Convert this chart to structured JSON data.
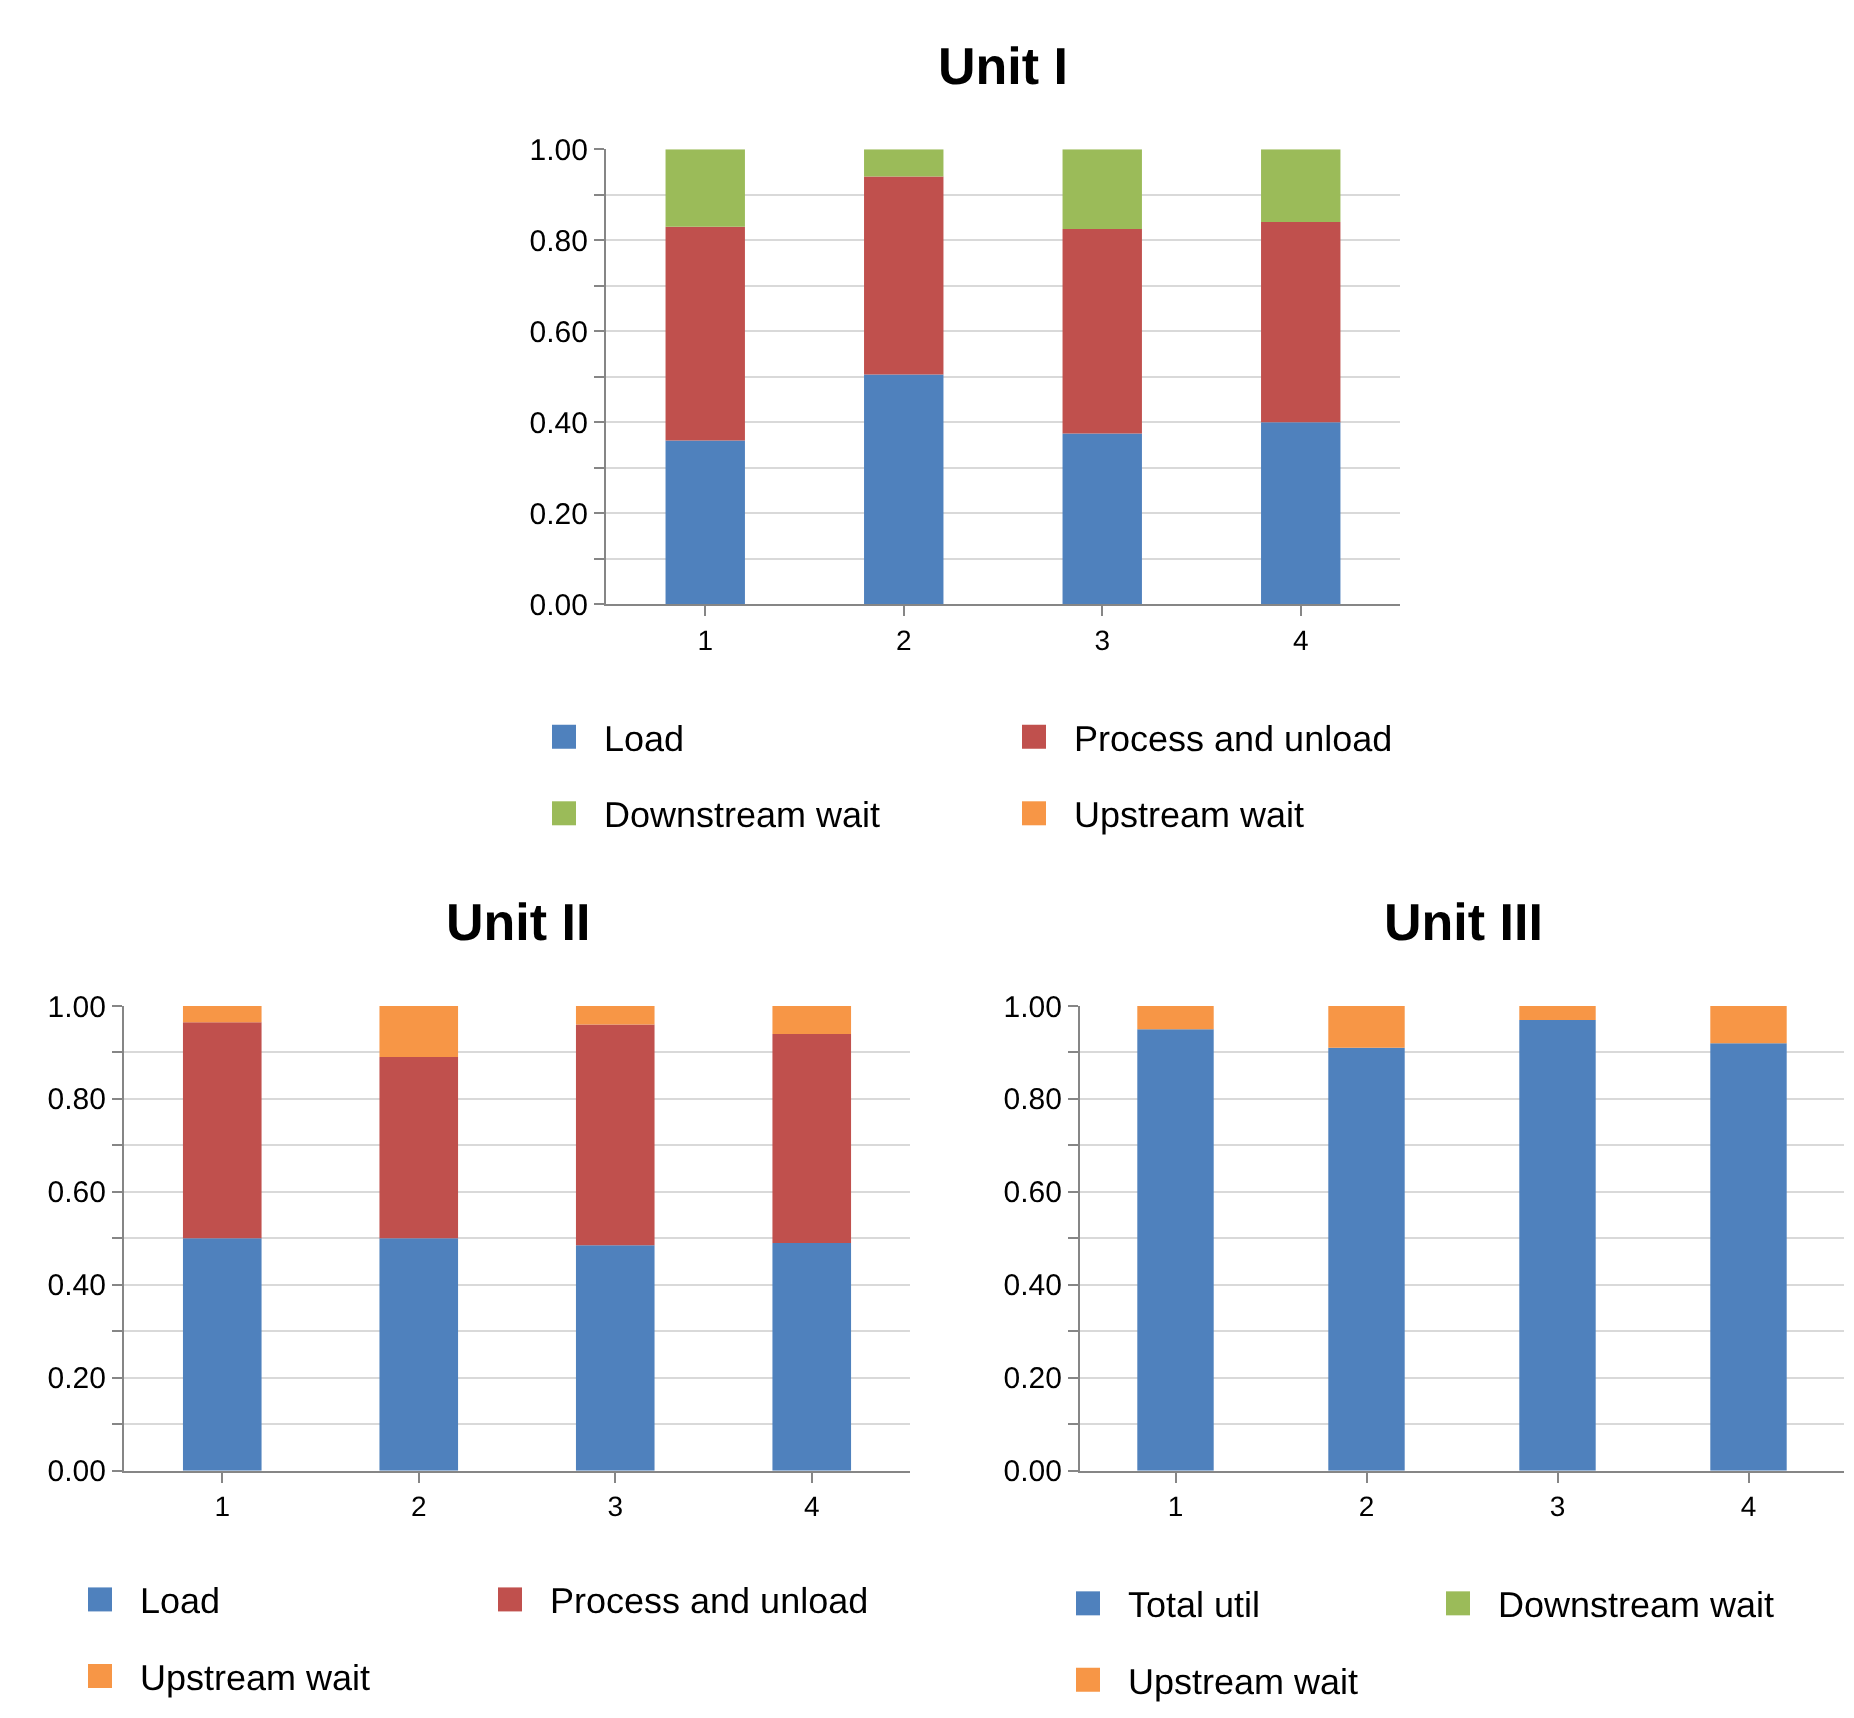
{
  "chart_data": [
    {
      "type": "bar",
      "stacked": true,
      "title": "Unit I",
      "categories": [
        "1",
        "2",
        "3",
        "4"
      ],
      "series": [
        {
          "name": "Load",
          "color": "#4f81bd",
          "values": [
            0.36,
            0.505,
            0.375,
            0.4
          ]
        },
        {
          "name": "Process and unload",
          "color": "#c0504d",
          "values": [
            0.47,
            0.435,
            0.45,
            0.44
          ]
        },
        {
          "name": "Downstream wait",
          "color": "#9bbb59",
          "values": [
            0.17,
            0.06,
            0.175,
            0.16
          ]
        },
        {
          "name": "Upstream wait",
          "color": "#f79646",
          "values": [
            0,
            0,
            0,
            0
          ]
        }
      ],
      "ylim": [
        0,
        1
      ],
      "yticks": [
        {
          "value": 0,
          "label": "0.00"
        },
        {
          "value": 0.1,
          "label": null
        },
        {
          "value": 0.2,
          "label": "0.20"
        },
        {
          "value": 0.3,
          "label": null
        },
        {
          "value": 0.4,
          "label": "0.40"
        },
        {
          "value": 0.5,
          "label": null
        },
        {
          "value": 0.6,
          "label": "0.60"
        },
        {
          "value": 0.7,
          "label": null
        },
        {
          "value": 0.8,
          "label": "0.80"
        },
        {
          "value": 0.9,
          "label": null
        },
        {
          "value": 1,
          "label": "1.00"
        }
      ],
      "grid": "y",
      "legend": "bottom"
    },
    {
      "type": "bar",
      "stacked": true,
      "title": "Unit II",
      "categories": [
        "1",
        "2",
        "3",
        "4"
      ],
      "series": [
        {
          "name": "Load",
          "color": "#4f81bd",
          "values": [
            0.5,
            0.5,
            0.485,
            0.49
          ]
        },
        {
          "name": "Process and unload",
          "color": "#c0504d",
          "values": [
            0.465,
            0.39,
            0.475,
            0.45
          ]
        },
        {
          "name": "Upstream wait",
          "color": "#f79646",
          "values": [
            0.035,
            0.11,
            0.04,
            0.06
          ]
        }
      ],
      "ylim": [
        0,
        1
      ],
      "yticks": [
        {
          "value": 0,
          "label": "0.00"
        },
        {
          "value": 0.1,
          "label": null
        },
        {
          "value": 0.2,
          "label": "0.20"
        },
        {
          "value": 0.3,
          "label": null
        },
        {
          "value": 0.4,
          "label": "0.40"
        },
        {
          "value": 0.5,
          "label": null
        },
        {
          "value": 0.6,
          "label": "0.60"
        },
        {
          "value": 0.7,
          "label": null
        },
        {
          "value": 0.8,
          "label": "0.80"
        },
        {
          "value": 0.9,
          "label": null
        },
        {
          "value": 1,
          "label": "1.00"
        }
      ],
      "grid": "y",
      "legend": "bottom"
    },
    {
      "type": "bar",
      "stacked": true,
      "title": "Unit III",
      "categories": [
        "1",
        "2",
        "3",
        "4"
      ],
      "series": [
        {
          "name": "Total util",
          "color": "#4f81bd",
          "values": [
            0.95,
            0.91,
            0.97,
            0.92
          ]
        },
        {
          "name": "Downstream wait",
          "color": "#9bbb59",
          "values": [
            0,
            0,
            0,
            0
          ]
        },
        {
          "name": "Upstream wait",
          "color": "#f79646",
          "values": [
            0.05,
            0.09,
            0.03,
            0.08
          ]
        }
      ],
      "ylim": [
        0,
        1
      ],
      "yticks": [
        {
          "value": 0,
          "label": "0.00"
        },
        {
          "value": 0.1,
          "label": null
        },
        {
          "value": 0.2,
          "label": "0.20"
        },
        {
          "value": 0.3,
          "label": null
        },
        {
          "value": 0.4,
          "label": "0.40"
        },
        {
          "value": 0.5,
          "label": null
        },
        {
          "value": 0.6,
          "label": "0.60"
        },
        {
          "value": 0.7,
          "label": null
        },
        {
          "value": 0.8,
          "label": "0.80"
        },
        {
          "value": 0.9,
          "label": null
        },
        {
          "value": 1,
          "label": "1.00"
        }
      ],
      "grid": "y",
      "legend": "bottom"
    }
  ]
}
